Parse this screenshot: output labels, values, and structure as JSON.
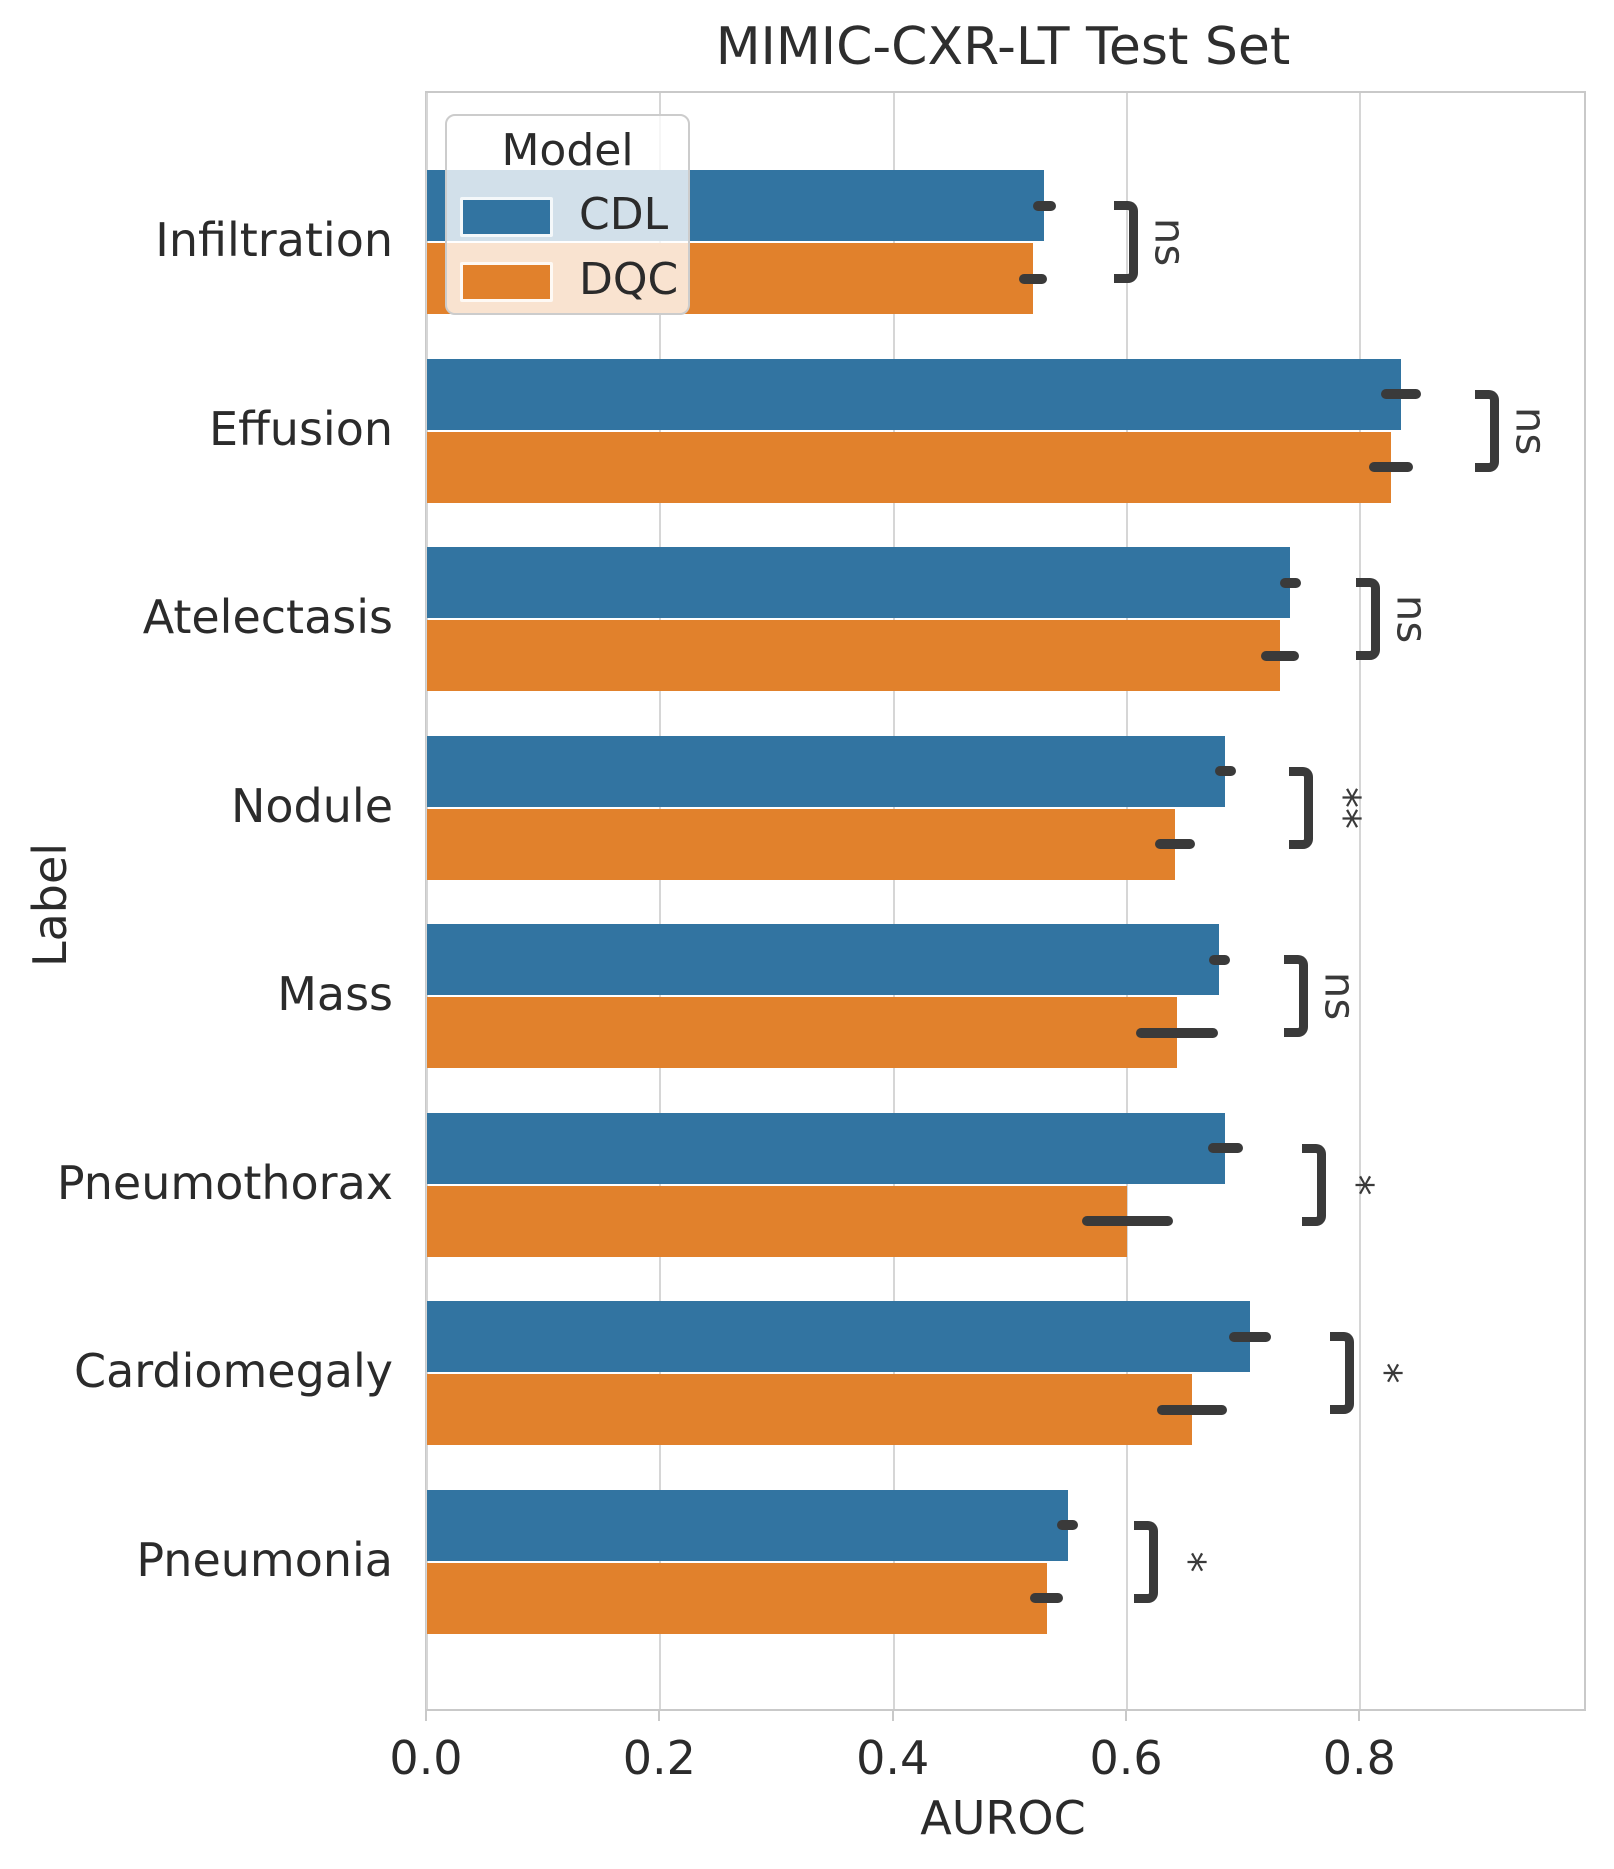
{
  "title": "MIMIC-CXR-LT Test Set",
  "legend": {
    "title": "Model",
    "items": [
      {
        "label": "CDL",
        "color": "#3274a1"
      },
      {
        "label": "DQC",
        "color": "#e1812c"
      }
    ]
  },
  "colors": {
    "cdl_blue": "#3274a1",
    "dqc_orange": "#e1812c",
    "error_bar": "#3a3a3a",
    "gridline": "#d6d6d6",
    "spine": "#c9c9c9",
    "text": "#2b2b2b"
  },
  "chart_data": {
    "type": "bar",
    "orientation": "horizontal",
    "title": "MIMIC-CXR-LT Test Set",
    "xlabel": "AUROC",
    "ylabel": "Label",
    "xlim": [
      0,
      0.99
    ],
    "grid": "vertical",
    "legend_position": "upper-left",
    "xticks": [
      0.0,
      0.2,
      0.4,
      0.6,
      0.8
    ],
    "xtick_labels": [
      "0.0",
      "0.2",
      "0.4",
      "0.6",
      "0.8"
    ],
    "categories": [
      "Infiltration",
      "Effusion",
      "Atelectasis",
      "Nodule",
      "Mass",
      "Pneumothorax",
      "Cardiomegaly",
      "Pneumonia"
    ],
    "series": [
      {
        "name": "CDL",
        "color": "#3274a1",
        "values": [
          0.529,
          0.835,
          0.74,
          0.684,
          0.679,
          0.684,
          0.705,
          0.549
        ],
        "errors": [
          0.01,
          0.017,
          0.009,
          0.009,
          0.009,
          0.015,
          0.018,
          0.009
        ]
      },
      {
        "name": "DQC",
        "color": "#e1812c",
        "values": [
          0.519,
          0.826,
          0.731,
          0.641,
          0.643,
          0.6,
          0.656,
          0.531
        ],
        "errors": [
          0.012,
          0.019,
          0.016,
          0.017,
          0.035,
          0.039,
          0.03,
          0.014
        ]
      }
    ],
    "significance": [
      {
        "label": "ns",
        "bracket_x": 0.606
      },
      {
        "label": "ns",
        "bracket_x": 0.915
      },
      {
        "label": "ns",
        "bracket_x": 0.813
      },
      {
        "label": "**",
        "bracket_x": 0.756
      },
      {
        "label": "ns",
        "bracket_x": 0.752
      },
      {
        "label": "*",
        "bracket_x": 0.767
      },
      {
        "label": "*",
        "bracket_x": 0.791
      },
      {
        "label": "*",
        "bracket_x": 0.623
      }
    ]
  }
}
